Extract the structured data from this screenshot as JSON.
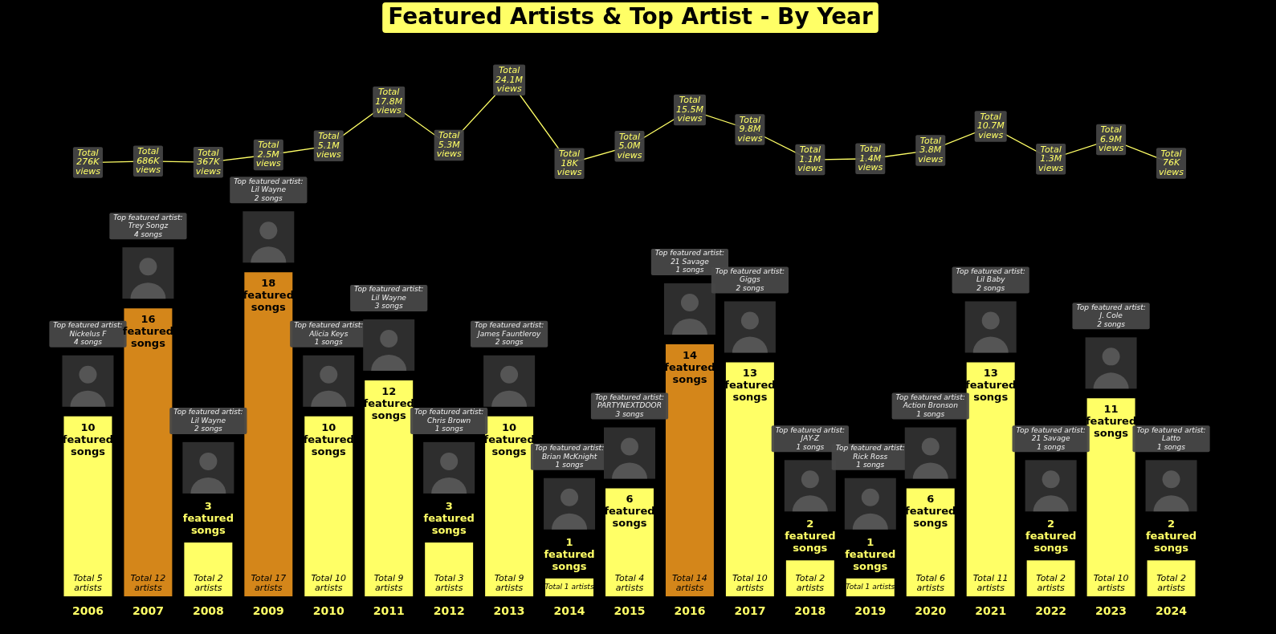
{
  "chart_data": {
    "type": "bar",
    "title": "Featured Artists & Top Artist - By Year",
    "categories": [
      "2006",
      "2007",
      "2008",
      "2009",
      "2010",
      "2011",
      "2012",
      "2013",
      "2014",
      "2015",
      "2016",
      "2017",
      "2018",
      "2019",
      "2020",
      "2021",
      "2022",
      "2023",
      "2024"
    ],
    "ylim": [
      0,
      30
    ],
    "y2lim": [
      -125000000,
      31000000
    ],
    "grid": false,
    "tick_labels": "x",
    "data_labels": true,
    "series": [
      {
        "type": "bar",
        "values": [
          10,
          16,
          3,
          18,
          10,
          12,
          3,
          10,
          1,
          6,
          14,
          13,
          2,
          1,
          6,
          13,
          2,
          11,
          2
        ],
        "value_labels": [
          "10 featured songs",
          "16 featured songs",
          "3 featured songs",
          "18 featured songs",
          "10 featured songs",
          "12 featured songs",
          "3 featured songs",
          "10 featured songs",
          "1 featured songs",
          "6 featured songs",
          "14 featured songs",
          "13 featured songs",
          "2 featured songs",
          "1 featured songs",
          "6 featured songs",
          "13 featured songs",
          "2 featured songs",
          "11 featured songs",
          "2 featured songs"
        ],
        "colors": [
          "#ffff66",
          "#d4861a",
          "#ffff66",
          "#d4861a",
          "#ffff66",
          "#ffff66",
          "#ffff66",
          "#ffff66",
          "#ffff66",
          "#ffff66",
          "#d4861a",
          "#ffff66",
          "#ffff66",
          "#ffff66",
          "#ffff66",
          "#ffff66",
          "#ffff66",
          "#ffff66",
          "#ffff66"
        ],
        "artists": [
          5,
          12,
          2,
          17,
          10,
          9,
          3,
          9,
          1,
          4,
          14,
          10,
          2,
          1,
          6,
          11,
          2,
          10,
          2
        ],
        "artist_labels": [
          "Total 5 artists",
          "Total 12 artists",
          "Total 2 artists",
          "Total 17 artists",
          "Total 10 artists",
          "Total 9 artists",
          "Total 3 artists",
          "Total 9 artists",
          "Total 1 artists",
          "Total 4 artists",
          "Total 14 artists",
          "Total 10 artists",
          "Total 2 artists",
          "Total 1 artists",
          "Total 6 artists",
          "Total 11 artists",
          "Total 2 artists",
          "Total 10 artists",
          "Total 2 artists"
        ],
        "top_artist_heading": "Top featured artist:",
        "top_artists": [
          "Nickelus F",
          "Trey Songz",
          "Lil Wayne",
          "Lil Wayne",
          "Alicia Keys",
          "Lil Wayne",
          "Chris Brown",
          "James Fauntleroy",
          "Brian McKnight",
          "PARTYNEXTDOOR",
          "21 Savage",
          "Giggs",
          "JAY-Z",
          "Rick Ross",
          "Action Bronson",
          "Lil Baby",
          "21 Savage",
          "J. Cole",
          "Latto"
        ],
        "top_artist_songs": [
          4,
          4,
          2,
          2,
          1,
          3,
          1,
          2,
          1,
          3,
          1,
          2,
          1,
          1,
          1,
          2,
          1,
          2,
          1
        ],
        "top_artist_song_labels": [
          "4 songs",
          "4 songs",
          "2 songs",
          "2 songs",
          "1 songs",
          "3 songs",
          "1 songs",
          "2 songs",
          "1 songs",
          "3 songs",
          "1 songs",
          "2 songs",
          "1 songs",
          "1 songs",
          "1 songs",
          "2 songs",
          "1 songs",
          "2 songs",
          "1 songs"
        ]
      },
      {
        "type": "line",
        "axis": "y2",
        "color": "#ffff66",
        "values": [
          276000,
          686000,
          367000,
          2500000,
          5100000,
          17800000,
          5300000,
          24100000,
          18000,
          5000000,
          15500000,
          9800000,
          1100000,
          1400000,
          3800000,
          10700000,
          1300000,
          6900000,
          76000
        ],
        "value_labels": [
          "Total 276K views",
          "Total 686K views",
          "Total 367K views",
          "Total 2.5M views",
          "Total 5.1M views",
          "Total 17.8M views",
          "Total 5.3M views",
          "Total 24.1M views",
          "Total 18K views",
          "Total 5.0M views",
          "Total 15.5M views",
          "Total 9.8M views",
          "Total 1.1M views",
          "Total 1.4M views",
          "Total 3.8M views",
          "Total 10.7M views",
          "Total 1.3M views",
          "Total 6.9M views",
          "Total 76K views"
        ]
      }
    ]
  }
}
